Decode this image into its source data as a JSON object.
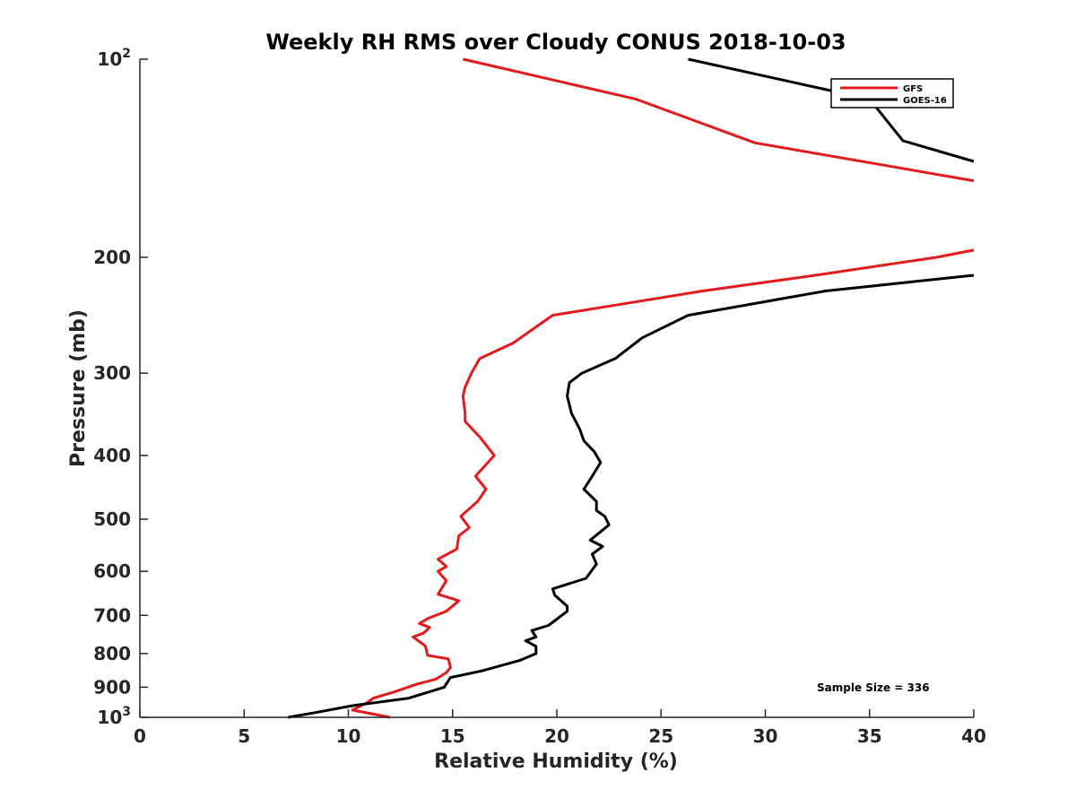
{
  "chart_data": {
    "type": "line",
    "title": "Weekly RH RMS over Cloudy CONUS 2018-10-03",
    "xlabel": "Relative Humidity (%)",
    "ylabel": "Pressure (mb)",
    "xlim": [
      0,
      40
    ],
    "ylim": [
      100,
      1000
    ],
    "yscale": "log",
    "y_reversed": true,
    "grid": false,
    "legend_position": "top-right",
    "x_ticks": [
      0,
      5,
      10,
      15,
      20,
      25,
      30,
      35,
      40
    ],
    "y_ticks": [
      {
        "value": 100,
        "label": "10",
        "sup": "2"
      },
      {
        "value": 200,
        "label": "200",
        "sup": ""
      },
      {
        "value": 300,
        "label": "300",
        "sup": ""
      },
      {
        "value": 400,
        "label": "400",
        "sup": ""
      },
      {
        "value": 500,
        "label": "500",
        "sup": ""
      },
      {
        "value": 600,
        "label": "600",
        "sup": ""
      },
      {
        "value": 700,
        "label": "700",
        "sup": ""
      },
      {
        "value": 800,
        "label": "800",
        "sup": ""
      },
      {
        "value": 900,
        "label": "900",
        "sup": ""
      },
      {
        "value": 1000,
        "label": "10",
        "sup": "3"
      }
    ],
    "annotation": "Sample Size = 336",
    "series": [
      {
        "name": "GFS",
        "color": "#e41a1c",
        "points": [
          [
            12.0,
            1000
          ],
          [
            10.2,
            975
          ],
          [
            10.9,
            950
          ],
          [
            11.2,
            935
          ],
          [
            12.2,
            915
          ],
          [
            13.3,
            890
          ],
          [
            14.2,
            875
          ],
          [
            14.7,
            855
          ],
          [
            14.9,
            840
          ],
          [
            14.8,
            815
          ],
          [
            13.8,
            805
          ],
          [
            13.7,
            780
          ],
          [
            13.6,
            775
          ],
          [
            13.1,
            755
          ],
          [
            13.6,
            745
          ],
          [
            13.9,
            730
          ],
          [
            13.4,
            720
          ],
          [
            13.8,
            708
          ],
          [
            14.7,
            690
          ],
          [
            15.3,
            665
          ],
          [
            14.3,
            650
          ],
          [
            14.5,
            635
          ],
          [
            14.7,
            620
          ],
          [
            14.3,
            600
          ],
          [
            14.7,
            590
          ],
          [
            14.3,
            575
          ],
          [
            15.2,
            555
          ],
          [
            15.3,
            530
          ],
          [
            15.8,
            515
          ],
          [
            15.4,
            495
          ],
          [
            16.2,
            470
          ],
          [
            16.6,
            450
          ],
          [
            16.1,
            430
          ],
          [
            17.0,
            400
          ],
          [
            16.3,
            375
          ],
          [
            15.6,
            355
          ],
          [
            15.6,
            345
          ],
          [
            15.5,
            325
          ],
          [
            15.6,
            315
          ],
          [
            15.9,
            300
          ],
          [
            16.3,
            285
          ],
          [
            17.9,
            270
          ],
          [
            19.8,
            245
          ],
          [
            27.0,
            225
          ],
          [
            32.4,
            213
          ],
          [
            38.2,
            200
          ],
          [
            40.0,
            195
          ]
        ]
      },
      {
        "name": "GOES-16",
        "color": "#000000",
        "points": [
          [
            7.1,
            1000
          ],
          [
            8.3,
            985
          ],
          [
            10.2,
            960
          ],
          [
            12.9,
            935
          ],
          [
            14.6,
            900
          ],
          [
            14.9,
            870
          ],
          [
            16.4,
            850
          ],
          [
            18.2,
            820
          ],
          [
            19.0,
            800
          ],
          [
            19.0,
            780
          ],
          [
            18.5,
            765
          ],
          [
            19.0,
            755
          ],
          [
            18.8,
            738
          ],
          [
            19.6,
            725
          ],
          [
            20.5,
            690
          ],
          [
            20.5,
            678
          ],
          [
            19.9,
            652
          ],
          [
            19.8,
            638
          ],
          [
            21.4,
            615
          ],
          [
            21.9,
            585
          ],
          [
            21.7,
            565
          ],
          [
            22.2,
            550
          ],
          [
            21.6,
            538
          ],
          [
            22.5,
            510
          ],
          [
            22.3,
            495
          ],
          [
            21.9,
            485
          ],
          [
            21.9,
            470
          ],
          [
            21.3,
            450
          ],
          [
            21.7,
            430
          ],
          [
            22.1,
            410
          ],
          [
            21.8,
            395
          ],
          [
            21.3,
            380
          ],
          [
            21.1,
            365
          ],
          [
            20.7,
            345
          ],
          [
            20.5,
            325
          ],
          [
            20.6,
            310
          ],
          [
            21.2,
            300
          ],
          [
            22.8,
            285
          ],
          [
            24.1,
            265
          ],
          [
            26.3,
            245
          ],
          [
            32.9,
            225
          ],
          [
            40.0,
            213
          ]
        ]
      },
      {
        "name": "GFS",
        "color": "#e41a1c",
        "legend": false,
        "points": [
          [
            15.5,
            100
          ],
          [
            23.8,
            115
          ],
          [
            29.5,
            134
          ],
          [
            40.0,
            153
          ]
        ]
      },
      {
        "name": "GOES-16",
        "color": "#000000",
        "legend": false,
        "points": [
          [
            26.3,
            100
          ],
          [
            35.0,
            115
          ],
          [
            36.6,
            133
          ],
          [
            40.0,
            143
          ]
        ]
      }
    ]
  }
}
